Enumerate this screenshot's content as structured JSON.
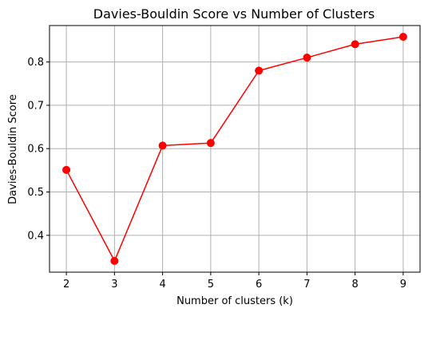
{
  "chart_data": {
    "type": "line",
    "title": "Davies-Bouldin Score vs Number of Clusters",
    "xlabel": "Number of clusters (k)",
    "ylabel": "Davies-Bouldin Score",
    "x": [
      2,
      3,
      4,
      5,
      6,
      7,
      8,
      9
    ],
    "series": [
      {
        "values": [
          0.551,
          0.341,
          0.607,
          0.613,
          0.78,
          0.81,
          0.841,
          0.858
        ],
        "color": "#ff0000",
        "marker": "circle"
      }
    ],
    "xticks": [
      "2",
      "3",
      "4",
      "5",
      "6",
      "7",
      "8",
      "9"
    ],
    "yticks": [
      "0.4",
      "0.5",
      "0.6",
      "0.7",
      "0.8"
    ],
    "xlim": [
      1.65,
      9.35
    ],
    "ylim": [
      0.315,
      0.884
    ],
    "grid": true,
    "colors": {
      "line": "#ff0000",
      "grid": "#b0b0b0",
      "axes": "#000000"
    }
  }
}
